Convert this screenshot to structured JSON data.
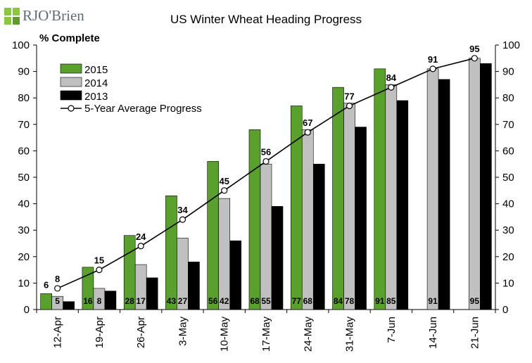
{
  "logo_text": "RJO'Brien",
  "chart_data": {
    "type": "bar",
    "title": "US Winter Wheat Heading Progress",
    "ylabel": "% Complete",
    "xlabel": "",
    "ylim": [
      0,
      100
    ],
    "yticks": [
      0,
      10,
      20,
      30,
      40,
      50,
      60,
      70,
      80,
      90,
      100
    ],
    "grid": false,
    "legend_position": "top-left",
    "categories": [
      "12-Apr",
      "19-Apr",
      "26-Apr",
      "3-May",
      "10-May",
      "17-May",
      "24-May",
      "31-May",
      "7-Jun",
      "14-Jun",
      "21-Jun"
    ],
    "series": [
      {
        "name": "2015",
        "kind": "bar",
        "color": "#5aa02c",
        "values": [
          6,
          16,
          28,
          43,
          56,
          68,
          77,
          84,
          91,
          null,
          null
        ],
        "labels": [
          "",
          "16",
          "28",
          "43",
          "56",
          "68",
          "77",
          "84",
          "91",
          "",
          ""
        ]
      },
      {
        "name": "2014",
        "kind": "bar",
        "color": "#c0c0c0",
        "values": [
          5,
          8,
          17,
          27,
          42,
          55,
          68,
          78,
          85,
          91,
          95
        ],
        "labels": [
          "5",
          "8",
          "17",
          "27",
          "42",
          "55",
          "68",
          "78",
          "85",
          "91",
          "95"
        ]
      },
      {
        "name": "2013",
        "kind": "bar",
        "color": "#000000",
        "values": [
          3,
          7,
          12,
          18,
          26,
          39,
          55,
          69,
          79,
          87,
          93
        ],
        "labels": [
          "",
          "",
          "",
          "",
          "",
          "",
          "",
          "",
          "",
          "",
          ""
        ]
      },
      {
        "name": "5-Year Average Progress",
        "kind": "line",
        "color": "#000000",
        "values": [
          8,
          15,
          24,
          34,
          45,
          56,
          67,
          77,
          84,
          91,
          95
        ],
        "labels": [
          "8",
          "15",
          "24",
          "34",
          "45",
          "56",
          "67",
          "77",
          "84",
          "91",
          "95"
        ]
      }
    ],
    "top_labels": [
      "6",
      "",
      "",
      "",
      "",
      "",
      "",
      "",
      "",
      "",
      ""
    ]
  }
}
